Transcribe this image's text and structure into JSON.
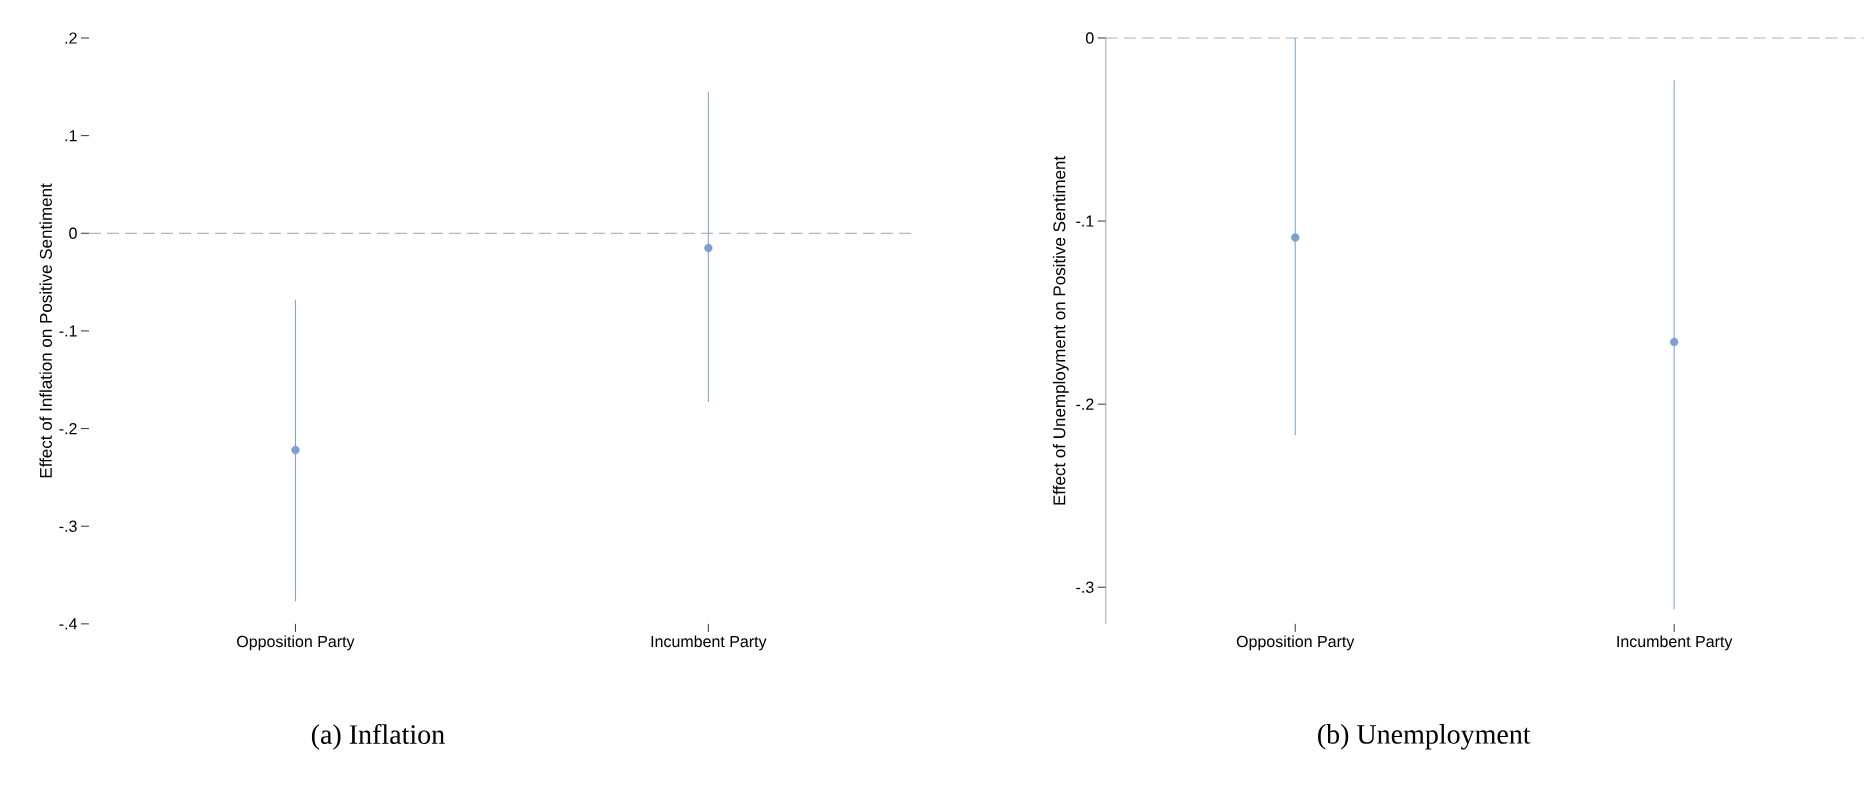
{
  "chart_data": [
    {
      "type": "scatter",
      "title": "(a) Inflation",
      "ylabel": "Effect of Inflation on Positive Sentiment",
      "categories": [
        "Opposition Party",
        "Incumbent Party"
      ],
      "values": [
        -0.222,
        -0.015
      ],
      "errors": [
        [
          -0.377,
          -0.068
        ],
        [
          -0.173,
          0.145
        ]
      ],
      "color": "#7b9fcf",
      "marker": "circle",
      "ylim": [
        -0.4,
        0.2
      ],
      "yticks": [
        {
          "value": -0.4,
          "label": "-.4"
        },
        {
          "value": -0.3,
          "label": "-.3"
        },
        {
          "value": -0.2,
          "label": "-.2"
        },
        {
          "value": -0.1,
          "label": "-.1"
        },
        0,
        {
          "value": 0.1,
          "label": ".1"
        },
        {
          "value": 0.2,
          "label": ".2"
        }
      ],
      "ref_lines": [
        {
          "axis": "y",
          "value": 0,
          "line_style": "dashed",
          "color": "#8c8c8c"
        }
      ],
      "grid": false
    },
    {
      "type": "scatter",
      "title": "(b) Unemployment",
      "ylabel": "Effect of Unemployment on Positive Sentiment",
      "categories": [
        "Opposition Party",
        "Incumbent Party"
      ],
      "values": [
        -0.109,
        -0.166
      ],
      "errors": [
        [
          -0.217,
          0.0
        ],
        [
          -0.312,
          -0.023
        ]
      ],
      "color": "#7b9fcf",
      "marker": "circle",
      "ylim": [
        -0.32,
        0.0
      ],
      "yticks": [
        {
          "value": -0.3,
          "label": "-.3"
        },
        {
          "value": -0.2,
          "label": "-.2"
        },
        {
          "value": -0.1,
          "label": "-.1"
        },
        0
      ],
      "ref_lines": [
        {
          "axis": "y",
          "value": 0,
          "line_style": "dashed",
          "color": "#8c8c8c"
        }
      ],
      "grid": false
    }
  ]
}
